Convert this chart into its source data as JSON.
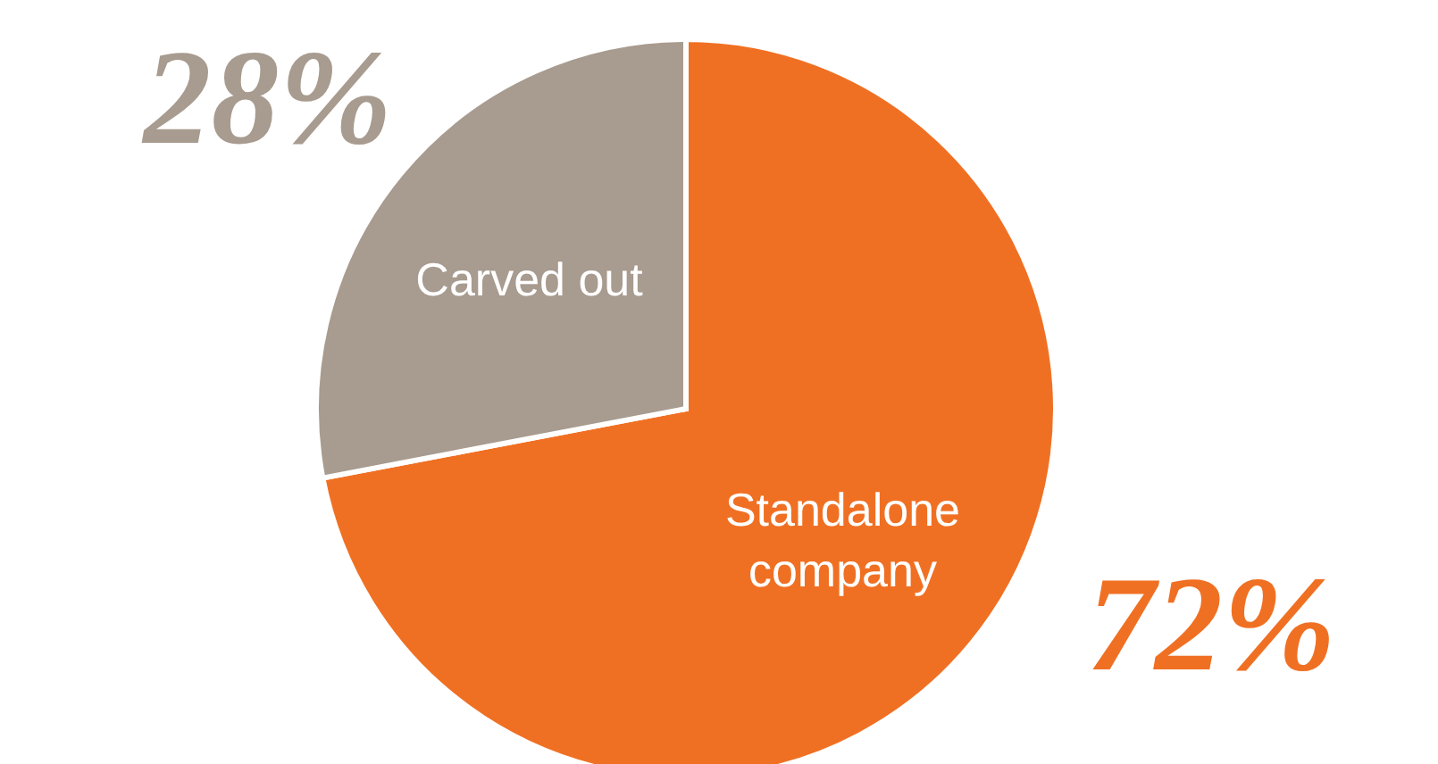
{
  "chart_data": {
    "type": "pie",
    "categories": [
      "Standalone company",
      "Carved out"
    ],
    "values": [
      72,
      28
    ],
    "colors": [
      "#f07023",
      "#a89b8f"
    ],
    "value_labels": [
      "72%",
      "28%"
    ]
  }
}
